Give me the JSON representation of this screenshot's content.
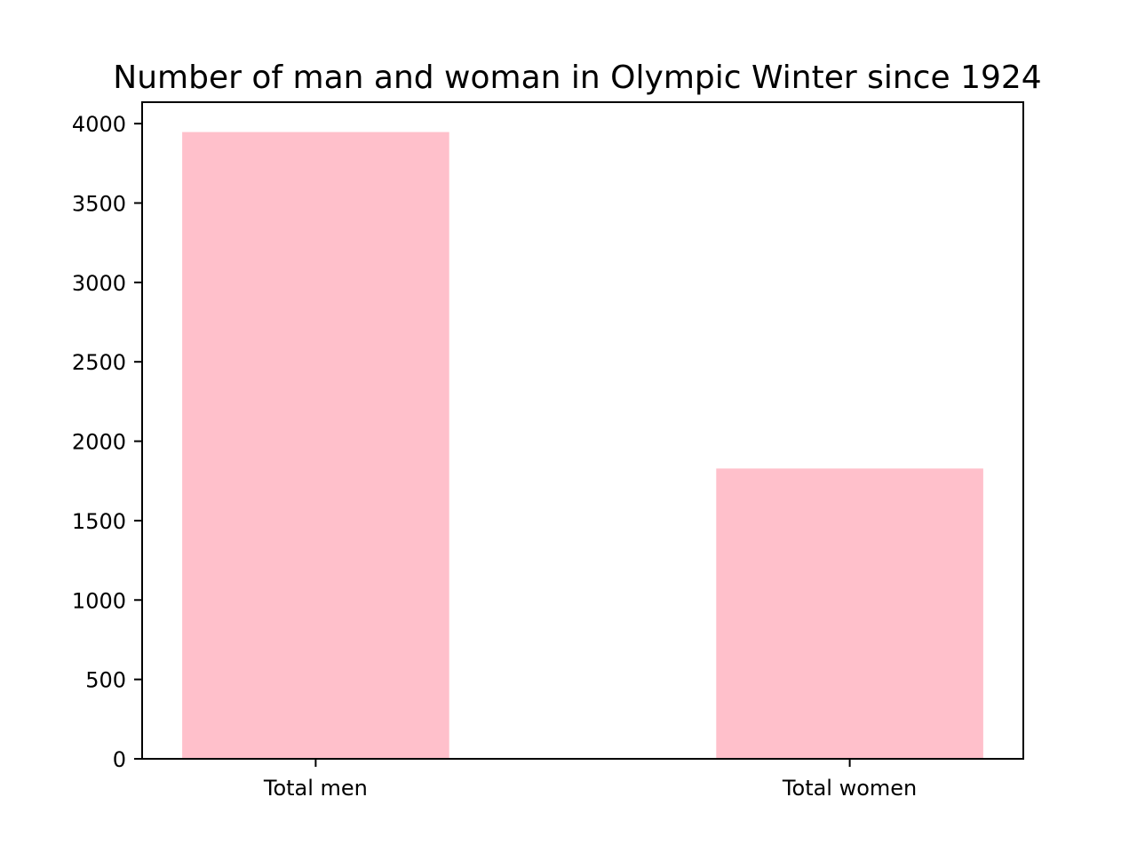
{
  "chart_data": {
    "type": "bar",
    "title": "Number of man and woman in Olympic Winter since 1924",
    "categories": [
      "Total men",
      "Total women"
    ],
    "values": [
      3947,
      1828
    ],
    "xlabel": "",
    "ylabel": "",
    "ylim": [
      0,
      4135
    ],
    "yticks": [
      0,
      500,
      1000,
      1500,
      2000,
      2500,
      3000,
      3500,
      4000
    ],
    "bar_color": "#ffc0cb",
    "grid": false,
    "legend": "none"
  }
}
